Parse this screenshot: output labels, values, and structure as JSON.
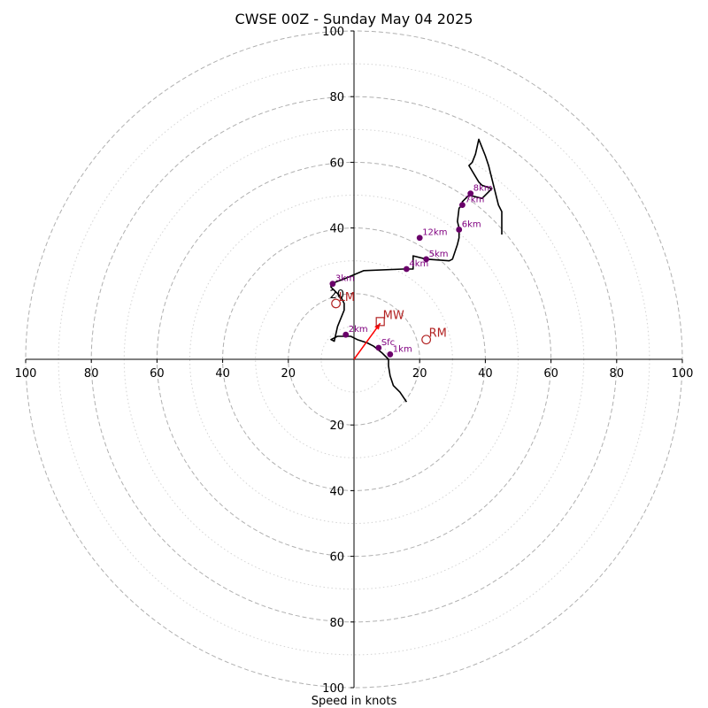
{
  "chart_data": {
    "type": "scatter",
    "subtype": "hodograph",
    "title": "CWSE 00Z - Sunday May 04 2025",
    "xlabel": "Speed in knots",
    "ylabel": "",
    "xlim": [
      -100,
      100
    ],
    "ylim": [
      -100,
      100
    ],
    "rings_major": [
      20,
      40,
      60,
      80,
      100
    ],
    "rings_minor": [
      10,
      30,
      50,
      70,
      90
    ],
    "x_tick_labels": [
      {
        "value": -100,
        "label": "100"
      },
      {
        "value": -80,
        "label": "80"
      },
      {
        "value": -60,
        "label": "60"
      },
      {
        "value": -40,
        "label": "40"
      },
      {
        "value": -20,
        "label": "20"
      },
      {
        "value": 20,
        "label": "20"
      },
      {
        "value": 40,
        "label": "40"
      },
      {
        "value": 60,
        "label": "60"
      },
      {
        "value": 80,
        "label": "80"
      },
      {
        "value": 100,
        "label": "100"
      }
    ],
    "y_tick_labels": [
      {
        "value": 100,
        "label": "100"
      },
      {
        "value": 80,
        "label": "80"
      },
      {
        "value": 60,
        "label": "60"
      },
      {
        "value": 40,
        "label": "40"
      },
      {
        "value": 20,
        "label": "20"
      },
      {
        "value": -20,
        "label": "20"
      },
      {
        "value": -40,
        "label": "40"
      },
      {
        "value": -60,
        "label": "60"
      },
      {
        "value": -80,
        "label": "80"
      },
      {
        "value": -100,
        "label": "100"
      }
    ],
    "profile": {
      "u": [
        16,
        14,
        12,
        11,
        10.5,
        10.5,
        8.5,
        6,
        4,
        1,
        -1,
        -5,
        -7,
        -6,
        -5,
        -3,
        -3,
        -4,
        -6,
        -7,
        -7,
        -3,
        3,
        15,
        18,
        18,
        22,
        29,
        30,
        31.5,
        32,
        32,
        31.5,
        32,
        33,
        33,
        35,
        39,
        41,
        42,
        39,
        38,
        35,
        36,
        37,
        38,
        40,
        41,
        42,
        44,
        45,
        45
      ],
      "v": [
        -13,
        -10,
        -8,
        -5,
        -2,
        0,
        2,
        4,
        5,
        6,
        7,
        7,
        6,
        5.5,
        10,
        15,
        17,
        19,
        21,
        22,
        23,
        24.5,
        27,
        27.5,
        27.5,
        31.5,
        30.5,
        30,
        30.5,
        35,
        37,
        40,
        42,
        46,
        47,
        48,
        50,
        49,
        51,
        52,
        53,
        54,
        59,
        60,
        62.5,
        67,
        62,
        59,
        55,
        47,
        45,
        38
      ]
    },
    "height_markers": [
      {
        "label": "Sfc",
        "u": 7.5,
        "v": 3.5
      },
      {
        "label": "1km",
        "u": 11,
        "v": 1.5
      },
      {
        "label": "2km",
        "u": -2.5,
        "v": 7.5
      },
      {
        "label": "3km",
        "u": -6.5,
        "v": 23
      },
      {
        "label": "4km",
        "u": 16,
        "v": 27.5
      },
      {
        "label": "5km",
        "u": 22,
        "v": 30.5
      },
      {
        "label": "6km",
        "u": 32,
        "v": 39.5
      },
      {
        "label": "7km",
        "u": 33,
        "v": 47
      },
      {
        "label": "8km",
        "u": 35.5,
        "v": 50.5
      },
      {
        "label": "12km",
        "u": 20,
        "v": 37
      }
    ],
    "mean_wind_vector": {
      "u": 8,
      "v": 11
    },
    "storm_motions": [
      {
        "label": "MW",
        "marker": "square",
        "u": 8,
        "v": 11.5
      },
      {
        "label": "RM",
        "marker": "circle",
        "u": 22,
        "v": 6
      },
      {
        "label": "LM",
        "marker": "circle",
        "u": -5.5,
        "v": 17
      }
    ],
    "colors": {
      "profile": "#000000",
      "height_markers": "#6a006a",
      "height_labels": "#800080",
      "storm_motion": "#b22222",
      "mean_wind_arrow": "#ff0000",
      "major_ring": "#b0b0b0",
      "minor_ring": "#d3d3d3",
      "axes": "#000000"
    },
    "grid": true
  }
}
